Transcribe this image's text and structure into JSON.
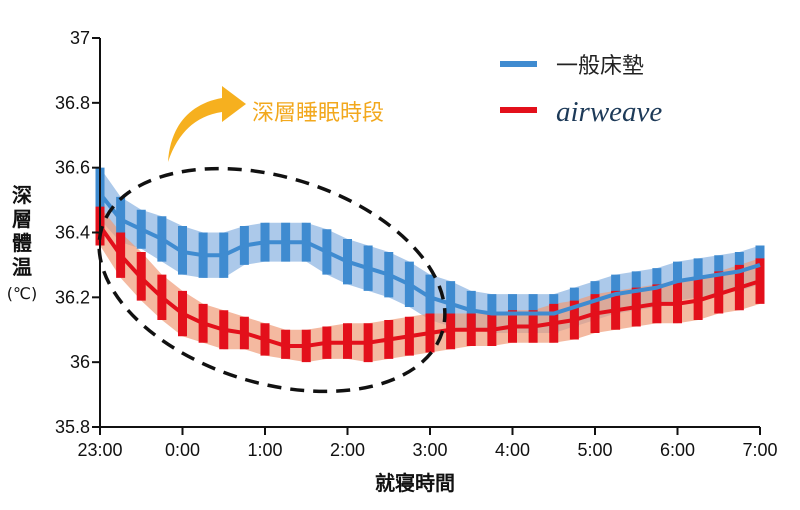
{
  "chart_data": {
    "type": "line",
    "title": "",
    "xlabel": "就寝時間",
    "ylabel_chars": [
      "深",
      "層",
      "體",
      "温"
    ],
    "ylabel_unit": "(℃)",
    "ylim": [
      35.8,
      37.0
    ],
    "y_ticks": [
      "35.8",
      "36",
      "36.2",
      "36.4",
      "36.6",
      "36.8",
      "37"
    ],
    "y_tick_values": [
      35.8,
      36.0,
      36.2,
      36.4,
      36.6,
      36.8,
      37.0
    ],
    "x_ticks": [
      "23:00",
      "0:00",
      "1:00",
      "2:00",
      "3:00",
      "4:00",
      "5:00",
      "6:00",
      "7:00"
    ],
    "x_tick_hours": [
      0,
      1,
      2,
      3,
      4,
      5,
      6,
      7,
      8
    ],
    "xlim_hours": [
      0,
      8
    ],
    "legend_position": "top-right",
    "annotation": "深層睡眠時段",
    "series": [
      {
        "name": "一般床墊",
        "color": "#3f8bd0",
        "band_color": "#9dbfe6",
        "x_hours": [
          0.0,
          0.25,
          0.5,
          0.75,
          1.0,
          1.25,
          1.5,
          1.75,
          2.0,
          2.25,
          2.5,
          2.75,
          3.0,
          3.25,
          3.5,
          3.75,
          4.0,
          4.25,
          4.5,
          4.75,
          5.0,
          5.25,
          5.5,
          5.75,
          6.0,
          6.25,
          6.5,
          6.75,
          7.0,
          7.25,
          7.5,
          7.75,
          8.0
        ],
        "mean": [
          36.52,
          36.44,
          36.41,
          36.38,
          36.34,
          36.33,
          36.33,
          36.36,
          36.37,
          36.37,
          36.37,
          36.34,
          36.31,
          36.29,
          36.27,
          36.24,
          36.2,
          36.18,
          36.16,
          36.15,
          36.15,
          36.15,
          36.15,
          36.17,
          36.19,
          36.21,
          36.22,
          36.23,
          36.25,
          36.26,
          36.27,
          36.28,
          36.3
        ],
        "upper": [
          36.6,
          36.51,
          36.47,
          36.45,
          36.42,
          36.4,
          36.4,
          36.42,
          36.43,
          36.43,
          36.43,
          36.41,
          36.38,
          36.36,
          36.34,
          36.31,
          36.27,
          36.25,
          36.22,
          36.21,
          36.21,
          36.21,
          36.21,
          36.23,
          36.25,
          36.27,
          36.28,
          36.29,
          36.31,
          36.32,
          36.33,
          36.34,
          36.36
        ],
        "lower": [
          36.44,
          36.37,
          36.35,
          36.31,
          36.27,
          36.26,
          36.26,
          36.3,
          36.31,
          36.31,
          36.31,
          36.27,
          36.24,
          36.22,
          36.2,
          36.17,
          36.13,
          36.11,
          36.1,
          36.09,
          36.09,
          36.09,
          36.09,
          36.11,
          36.13,
          36.15,
          36.16,
          36.17,
          36.19,
          36.2,
          36.21,
          36.22,
          36.24
        ]
      },
      {
        "name": "airweave",
        "color": "#e3101b",
        "band_color": "#f09b77",
        "x_hours": [
          0.0,
          0.25,
          0.5,
          0.75,
          1.0,
          1.25,
          1.5,
          1.75,
          2.0,
          2.25,
          2.5,
          2.75,
          3.0,
          3.25,
          3.5,
          3.75,
          4.0,
          4.25,
          4.5,
          4.75,
          5.0,
          5.25,
          5.5,
          5.75,
          6.0,
          6.25,
          6.5,
          6.75,
          7.0,
          7.25,
          7.5,
          7.75,
          8.0
        ],
        "mean": [
          36.42,
          36.33,
          36.26,
          36.2,
          36.15,
          36.12,
          36.1,
          36.09,
          36.07,
          36.05,
          36.05,
          36.06,
          36.06,
          36.06,
          36.07,
          36.08,
          36.09,
          36.1,
          36.1,
          36.1,
          36.11,
          36.11,
          36.12,
          36.13,
          36.15,
          36.16,
          36.17,
          36.18,
          36.18,
          36.19,
          36.21,
          36.23,
          36.25
        ],
        "upper": [
          36.48,
          36.4,
          36.34,
          36.27,
          36.22,
          36.18,
          36.16,
          36.14,
          36.12,
          36.1,
          36.1,
          36.11,
          36.12,
          36.12,
          36.13,
          36.14,
          36.15,
          36.15,
          36.15,
          36.15,
          36.16,
          36.16,
          36.18,
          36.19,
          36.21,
          36.22,
          36.23,
          36.24,
          36.25,
          36.26,
          36.28,
          36.3,
          36.32
        ],
        "lower": [
          36.36,
          36.26,
          36.19,
          36.13,
          36.08,
          36.06,
          36.04,
          36.04,
          36.02,
          36.01,
          36.0,
          36.01,
          36.01,
          36.0,
          36.01,
          36.02,
          36.03,
          36.04,
          36.05,
          36.05,
          36.06,
          36.06,
          36.06,
          36.07,
          36.09,
          36.1,
          36.11,
          36.12,
          36.12,
          36.13,
          36.15,
          36.16,
          36.18
        ]
      }
    ]
  }
}
